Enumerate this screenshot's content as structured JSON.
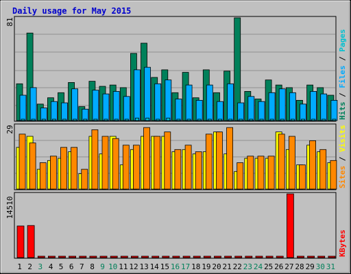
{
  "colors": {
    "frame": "#c0c0c0",
    "plot_bg": "#c0c0c0",
    "grid": "#8f8f8f",
    "title": "#0000cc",
    "weekday": "#000000",
    "weekend": "#00805a",
    "hits": "#00805a",
    "files": "#00aaff",
    "pages": "#00c0d0",
    "visits": "#ffff00",
    "sites": "#ff8800",
    "kbytes": "#ff0000",
    "sep": "#000000"
  },
  "chart_data": {
    "type": "bar",
    "title": "Daily usage for May 2015",
    "categories": [
      "1",
      "2",
      "3",
      "4",
      "5",
      "6",
      "7",
      "8",
      "9",
      "10",
      "11",
      "12",
      "13",
      "14",
      "15",
      "16",
      "17",
      "18",
      "19",
      "20",
      "21",
      "22",
      "23",
      "24",
      "25",
      "26",
      "27",
      "28",
      "29",
      "30",
      "31"
    ],
    "weekend_days": [
      3,
      9,
      10,
      16,
      17,
      23,
      24,
      30,
      31
    ],
    "panels": [
      {
        "name": "requests",
        "ymax": 81,
        "ymax_label": "81",
        "legend": [
          "Hits",
          "Files",
          "Pages"
        ],
        "series": [
          {
            "name": "Hits",
            "values": [
              29,
              69,
              13,
              18,
              22,
              30,
              11,
              31,
              27,
              28,
              26,
              53,
              61,
              34,
              40,
              22,
              38,
              18,
              40,
              22,
              39,
              81,
              23,
              17,
              32,
              28,
              26,
              16,
              28,
              26,
              20
            ]
          },
          {
            "name": "Files",
            "values": [
              20,
              26,
              10,
              15,
              14,
              25,
              9,
              24,
              21,
              23,
              19,
              40,
              42,
              29,
              32,
              17,
              28,
              16,
              28,
              15,
              29,
              14,
              19,
              15,
              22,
              25,
              22,
              13,
              23,
              21,
              16
            ]
          },
          {
            "name": "Pages",
            "values": [
              1,
              1,
              1,
              1,
              1,
              1,
              1,
              1,
              1,
              1,
              1,
              2,
              2,
              1,
              2,
              1,
              1,
              1,
              1,
              1,
              1,
              1,
              1,
              1,
              1,
              1,
              1,
              1,
              1,
              1,
              1
            ]
          }
        ]
      },
      {
        "name": "visitors",
        "ymax": 29,
        "ymax_label": "29",
        "legend": [
          "Sites",
          "Visits"
        ],
        "series": [
          {
            "name": "Visits",
            "values": [
              19,
              24,
              9,
              13,
              14,
              17,
              7,
              24,
              16,
              24,
              11,
              18,
              24,
              24,
              24,
              17,
              18,
              16,
              17,
              26,
              16,
              8,
              14,
              14,
              14,
              26,
              18,
              11,
              20,
              17,
              12
            ]
          },
          {
            "name": "Sites",
            "values": [
              25,
              21,
              12,
              15,
              19,
              19,
              9,
              27,
              24,
              23,
              20,
              20,
              28,
              24,
              26,
              18,
              20,
              17,
              25,
              26,
              28,
              12,
              15,
              15,
              15,
              25,
              24,
              11,
              22,
              18,
              13
            ]
          }
        ]
      },
      {
        "name": "kbytes",
        "ymax": 14510,
        "ymax_label": "14510",
        "legend": [
          "KBytes"
        ],
        "series": [
          {
            "name": "KBytes",
            "values": [
              7200,
              7300,
              120,
              120,
              120,
              120,
              120,
              120,
              120,
              120,
              120,
              120,
              120,
              120,
              120,
              120,
              120,
              120,
              120,
              120,
              120,
              120,
              120,
              120,
              120,
              120,
              14510,
              120,
              120,
              120,
              120
            ]
          }
        ]
      }
    ]
  }
}
